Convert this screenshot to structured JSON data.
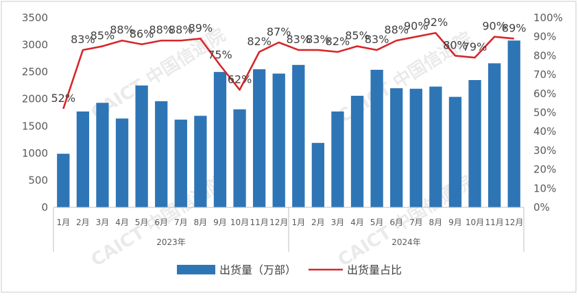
{
  "chart_data": {
    "type": "bar",
    "categories": [
      "1月",
      "2月",
      "3月",
      "4月",
      "5月",
      "6月",
      "7月",
      "8月",
      "9月",
      "10月",
      "11月",
      "12月",
      "1月",
      "2月",
      "3月",
      "4月",
      "5月",
      "6月",
      "7月",
      "8月",
      "9月",
      "10月",
      "11月",
      "12月"
    ],
    "groups": [
      {
        "label": "2023年",
        "start": 0,
        "end": 11
      },
      {
        "label": "2024年",
        "start": 12,
        "end": 23
      }
    ],
    "series": [
      {
        "name": "出货量（万部）",
        "type": "bar",
        "axis": "left",
        "color": "#2e75b6",
        "values": [
          990,
          1770,
          1930,
          1640,
          2250,
          1960,
          1620,
          1690,
          2500,
          1810,
          2550,
          2470,
          2630,
          1190,
          1770,
          2060,
          2540,
          2200,
          2190,
          2230,
          2040,
          2350,
          2660,
          3080
        ]
      },
      {
        "name": "出货量占比",
        "type": "line",
        "axis": "right",
        "color": "#d7262a",
        "values": [
          52,
          83,
          85,
          88,
          86,
          88,
          88,
          89,
          75,
          62,
          82,
          87,
          83,
          83,
          82,
          85,
          83,
          88,
          90,
          92,
          80,
          79,
          90,
          89
        ],
        "labels": [
          "52%",
          "83%",
          "85%",
          "88%",
          "86%",
          "88%",
          "88%",
          "89%",
          "75%",
          "62%",
          "82%",
          "87%",
          "83%",
          "83%",
          "82%",
          "85%",
          "83%",
          "88%",
          "90%",
          "92%",
          "80%",
          "79%",
          "90%",
          "89%"
        ]
      }
    ],
    "y_left": {
      "min": 0,
      "max": 3500,
      "ticks": [
        "0",
        "500",
        "1000",
        "1500",
        "2000",
        "2500",
        "3000",
        "3500"
      ]
    },
    "y_right": {
      "min": 0,
      "max": 100,
      "ticks": [
        "0%",
        "10%",
        "20%",
        "30%",
        "40%",
        "50%",
        "60%",
        "70%",
        "80%",
        "90%",
        "100%"
      ]
    },
    "legend": {
      "position": "bottom",
      "items": [
        "出货量（万部）",
        "出货量占比"
      ]
    },
    "grid": false,
    "watermark": "CAICT 中国信通院"
  }
}
